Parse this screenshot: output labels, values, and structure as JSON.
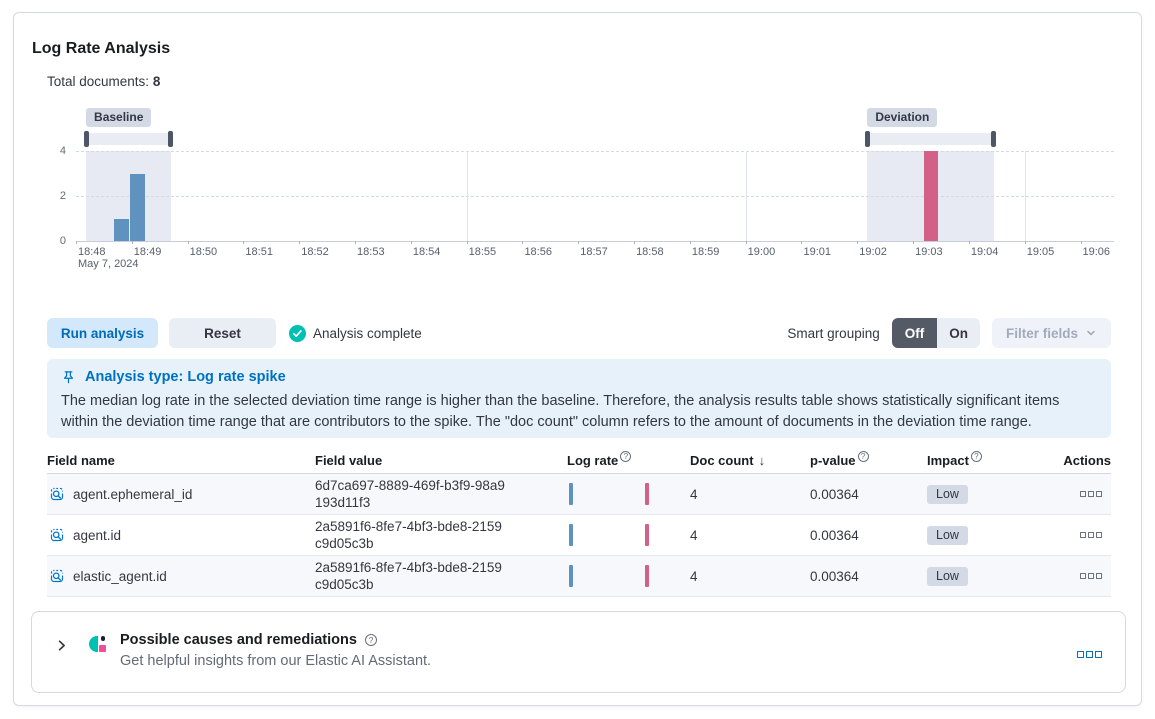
{
  "panel": {
    "title": "Log Rate Analysis",
    "total_documents": {
      "label": "Total documents:",
      "value": "8"
    }
  },
  "chart_data": {
    "type": "bar",
    "title": "Document count histogram with baseline and deviation selection windows",
    "x_axis": {
      "tick_labels": [
        "18:48",
        "18:49",
        "18:50",
        "18:51",
        "18:52",
        "18:53",
        "18:54",
        "18:55",
        "18:56",
        "18:57",
        "18:58",
        "18:59",
        "19:00",
        "19:01",
        "19:02",
        "19:03",
        "19:04",
        "19:05",
        "19:06"
      ],
      "first_tick_sublabel": "May 7, 2024",
      "minutes_span": 18.6
    },
    "y_axis": {
      "ticks": [
        0,
        2,
        4
      ],
      "max": 4
    },
    "series": [
      {
        "name": "baseline",
        "color": "#6092C0",
        "bars": [
          {
            "from_min": 0.68,
            "to_min": 0.95,
            "value": 1
          },
          {
            "from_min": 0.97,
            "to_min": 1.24,
            "value": 3
          }
        ]
      },
      {
        "name": "deviation",
        "color": "#D36086",
        "bars": [
          {
            "from_min": 15.2,
            "to_min": 15.45,
            "value": 4
          }
        ]
      }
    ],
    "windows": [
      {
        "label": "Baseline",
        "from_min": 0.18,
        "to_min": 1.7
      },
      {
        "label": "Deviation",
        "from_min": 14.18,
        "to_min": 16.45
      }
    ],
    "major_vertical_gridlines_min": [
      7,
      12,
      17
    ]
  },
  "controls": {
    "run_analysis": "Run analysis",
    "reset": "Reset",
    "status": "Analysis complete",
    "smart_grouping_label": "Smart grouping",
    "toggle": {
      "off": "Off",
      "on": "On",
      "selected": "Off"
    },
    "filter_fields": "Filter fields"
  },
  "callout": {
    "title": "Analysis type: Log rate spike",
    "body": "The median log rate in the selected deviation time range is higher than the baseline. Therefore, the analysis results table shows statistically significant items within the deviation time range that are contributors to the spike. The \"doc count\" column refers to the amount of documents in the deviation time range."
  },
  "table": {
    "headers": {
      "field_name": "Field name",
      "field_value": "Field value",
      "log_rate": "Log rate",
      "doc_count": "Doc count",
      "p_value": "p-value",
      "impact": "Impact",
      "actions": "Actions"
    },
    "sorted_by": "doc_count",
    "sort_direction": "desc",
    "rows": [
      {
        "field_name": "agent.ephemeral_id",
        "field_value": "6d7ca697-8889-469f-b3f9-98a9193d11f3",
        "doc_count": "4",
        "p_value": "0.00364",
        "impact": "Low"
      },
      {
        "field_name": "agent.id",
        "field_value": "2a5891f6-8fe7-4bf3-bde8-2159c9d05c3b",
        "doc_count": "4",
        "p_value": "0.00364",
        "impact": "Low"
      },
      {
        "field_name": "elastic_agent.id",
        "field_value": "2a5891f6-8fe7-4bf3-bde8-2159c9d05c3b",
        "doc_count": "4",
        "p_value": "0.00364",
        "impact": "Low"
      }
    ]
  },
  "ai_panel": {
    "title": "Possible causes and remediations",
    "subtitle": "Get helpful insights from our Elastic AI Assistant."
  },
  "icons": {
    "info": "?",
    "sort_descending": "↓"
  },
  "colors": {
    "baseline_bar": "#6092C0",
    "deviation_bar": "#D36086",
    "primary": "#0071c2",
    "success": "#00BFB3",
    "badge_background": "#d3dae6",
    "callout_background": "#e6f1fa"
  }
}
